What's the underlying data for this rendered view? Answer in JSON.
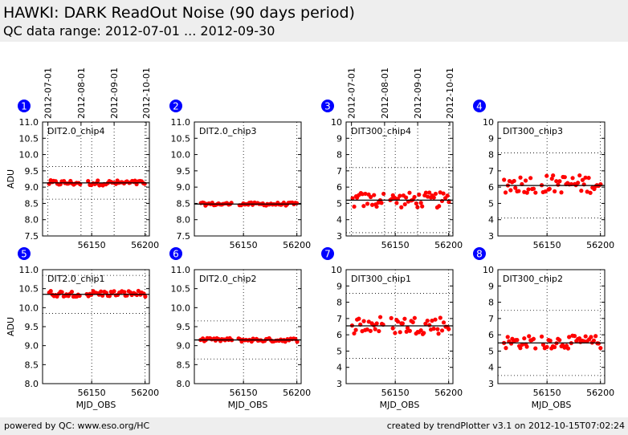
{
  "header": {
    "title": "HAWKI: DARK ReadOut Noise (90 days period)",
    "subtitle": "QC data range: 2012-07-01 ... 2012-09-30"
  },
  "footer": {
    "left": "powered by QC: www.eso.org/HC",
    "right": "created by trendPlotter v3.1 on 2012-10-15T07:02:24"
  },
  "colors": {
    "marker": "#ff0000",
    "badge": "#0000ff",
    "line": "#000000"
  },
  "chart_data": [
    {
      "type": "scatter",
      "badge": "1",
      "label": "DIT2.0_chip4",
      "ylabel": "ADU",
      "xlabel": "",
      "xlim": [
        56104,
        56204
      ],
      "ylim": [
        7.5,
        11.0
      ],
      "yticks": [
        "7.5",
        "8.0",
        "8.5",
        "9.0",
        "9.5",
        "10.0",
        "10.5",
        "11.0"
      ],
      "xticks": [
        "56150",
        "56200"
      ],
      "date_ticks": [
        "2012-07-01",
        "2012-08-01",
        "2012-09-01",
        "2012-10-01"
      ],
      "reference_line": 9.13,
      "threshold_lines": [
        8.63,
        9.63
      ],
      "points": {
        "mjd_start": 56110,
        "mjd_end": 56200,
        "center": 9.13,
        "spread": 0.05,
        "count": 60
      }
    },
    {
      "type": "scatter",
      "badge": "2",
      "label": "DIT2.0_chip3",
      "ylabel": "",
      "xlabel": "",
      "xlim": [
        56104,
        56204
      ],
      "ylim": [
        7.5,
        11.0
      ],
      "yticks": [
        "7.5",
        "8.0",
        "8.5",
        "9.0",
        "9.5",
        "10.0",
        "10.5",
        "11.0"
      ],
      "xticks": [
        "56150",
        "56200"
      ],
      "date_ticks": [],
      "reference_line": 8.48,
      "threshold_lines": [],
      "points": {
        "mjd_start": 56110,
        "mjd_end": 56200,
        "center": 8.48,
        "spread": 0.03,
        "count": 60
      }
    },
    {
      "type": "scatter",
      "badge": "3",
      "label": "DIT300_chip4",
      "ylabel": "",
      "xlabel": "",
      "xlim": [
        56104,
        56204
      ],
      "ylim": [
        3,
        10
      ],
      "yticks": [
        "3",
        "4",
        "5",
        "6",
        "7",
        "8",
        "9",
        "10"
      ],
      "xticks": [
        "56150",
        "56200"
      ],
      "date_ticks": [
        "2012-07-01",
        "2012-08-01",
        "2012-09-01",
        "2012-10-01"
      ],
      "reference_line": 5.2,
      "threshold_lines": [
        3.2,
        7.2
      ],
      "points": {
        "mjd_start": 56110,
        "mjd_end": 56200,
        "center": 5.2,
        "spread": 0.3,
        "count": 60
      }
    },
    {
      "type": "scatter",
      "badge": "4",
      "label": "DIT300_chip3",
      "ylabel": "",
      "xlabel": "",
      "xlim": [
        56104,
        56204
      ],
      "ylim": [
        3,
        10
      ],
      "yticks": [
        "3",
        "4",
        "5",
        "6",
        "7",
        "8",
        "9",
        "10"
      ],
      "xticks": [
        "56150",
        "56200"
      ],
      "date_ticks": [],
      "reference_line": 6.1,
      "threshold_lines": [
        4.1,
        8.1
      ],
      "points": {
        "mjd_start": 56110,
        "mjd_end": 56200,
        "center": 6.2,
        "spread": 0.35,
        "count": 60
      }
    },
    {
      "type": "scatter",
      "badge": "5",
      "label": "DIT2.0_chip1",
      "ylabel": "ADU",
      "xlabel": "MJD_OBS",
      "xlim": [
        56104,
        56204
      ],
      "ylim": [
        8.0,
        11.0
      ],
      "yticks": [
        "8.0",
        "8.5",
        "9.0",
        "9.5",
        "10.0",
        "10.5",
        "11.0"
      ],
      "xticks": [
        "56150",
        "56200"
      ],
      "date_ticks": [],
      "reference_line": 10.35,
      "threshold_lines": [
        9.85,
        10.85
      ],
      "points": {
        "mjd_start": 56110,
        "mjd_end": 56200,
        "center": 10.37,
        "spread": 0.05,
        "count": 60
      }
    },
    {
      "type": "scatter",
      "badge": "6",
      "label": "DIT2.0_chip2",
      "ylabel": "",
      "xlabel": "MJD_OBS",
      "xlim": [
        56104,
        56204
      ],
      "ylim": [
        8.0,
        11.0
      ],
      "yticks": [
        "8.0",
        "8.5",
        "9.0",
        "9.5",
        "10.0",
        "10.5",
        "11.0"
      ],
      "xticks": [
        "56150",
        "56200"
      ],
      "date_ticks": [],
      "reference_line": 9.15,
      "threshold_lines": [
        8.65,
        9.65
      ],
      "points": {
        "mjd_start": 56110,
        "mjd_end": 56200,
        "center": 9.15,
        "spread": 0.03,
        "count": 60
      }
    },
    {
      "type": "scatter",
      "badge": "7",
      "label": "DIT300_chip1",
      "ylabel": "",
      "xlabel": "MJD_OBS",
      "xlim": [
        56104,
        56204
      ],
      "ylim": [
        3,
        10
      ],
      "yticks": [
        "3",
        "4",
        "5",
        "6",
        "7",
        "8",
        "9",
        "10"
      ],
      "xticks": [
        "56150",
        "56200"
      ],
      "date_ticks": [],
      "reference_line": 6.55,
      "threshold_lines": [
        4.55,
        8.55
      ],
      "points": {
        "mjd_start": 56110,
        "mjd_end": 56200,
        "center": 6.6,
        "spread": 0.35,
        "count": 60
      }
    },
    {
      "type": "scatter",
      "badge": "8",
      "label": "DIT300_chip2",
      "ylabel": "",
      "xlabel": "MJD_OBS",
      "xlim": [
        56104,
        56204
      ],
      "ylim": [
        3,
        10
      ],
      "yticks": [
        "3",
        "4",
        "5",
        "6",
        "7",
        "8",
        "9",
        "10"
      ],
      "xticks": [
        "56150",
        "56200"
      ],
      "date_ticks": [],
      "reference_line": 5.5,
      "threshold_lines": [
        3.5,
        7.5
      ],
      "points": {
        "mjd_start": 56110,
        "mjd_end": 56200,
        "center": 5.55,
        "spread": 0.25,
        "count": 60
      }
    }
  ]
}
